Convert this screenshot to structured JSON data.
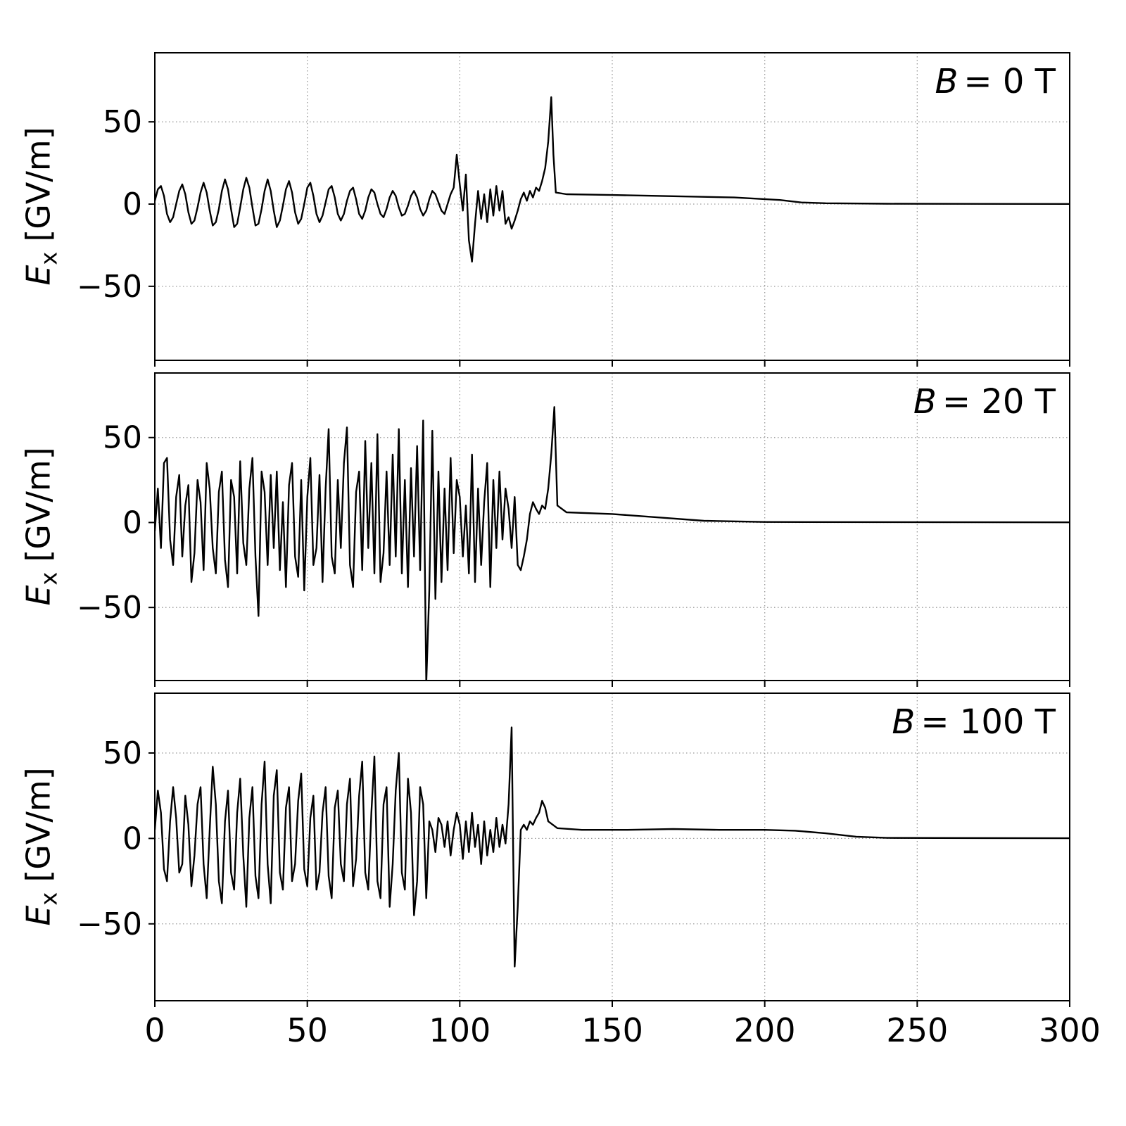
{
  "figure": {
    "background": "#ffffff",
    "line_color": "#000000",
    "grid_color": "#999999",
    "axis_color": "#000000"
  },
  "axes": {
    "xlim": [
      0,
      300
    ],
    "xticks": [
      0,
      50,
      100,
      150,
      200,
      250,
      300
    ],
    "yticks": [
      -50,
      0,
      50
    ],
    "ylabel_symbol": "E",
    "ylabel_subscript": "x",
    "ylabel_unit": "[GV/m]"
  },
  "chart_data": [
    {
      "type": "line",
      "title": "B = 0 T",
      "annotation_symbol": "B",
      "annotation_rest": "= 0 T",
      "xlabel": "",
      "ylabel": "Ex [GV/m]",
      "xlim": [
        0,
        300
      ],
      "ylim": [
        -95,
        92
      ],
      "points": [
        0,
        2,
        1,
        9,
        2,
        11,
        3,
        5,
        4,
        -6,
        5,
        -11,
        6,
        -8,
        7,
        0,
        8,
        8,
        9,
        12,
        10,
        6,
        11,
        -5,
        12,
        -12,
        13,
        -10,
        14,
        -2,
        15,
        7,
        16,
        13,
        17,
        7,
        18,
        -4,
        19,
        -13,
        20,
        -11,
        21,
        -3,
        22,
        8,
        23,
        15,
        24,
        9,
        25,
        -3,
        26,
        -14,
        27,
        -12,
        28,
        -2,
        29,
        9,
        30,
        16,
        31,
        10,
        32,
        -2,
        33,
        -13,
        34,
        -12,
        35,
        -3,
        36,
        8,
        37,
        15,
        38,
        8,
        39,
        -4,
        40,
        -14,
        41,
        -10,
        42,
        -1,
        43,
        9,
        44,
        14,
        45,
        7,
        46,
        -5,
        47,
        -12,
        48,
        -9,
        49,
        0,
        50,
        10,
        51,
        13,
        52,
        5,
        53,
        -6,
        54,
        -11,
        55,
        -7,
        56,
        1,
        57,
        9,
        58,
        11,
        59,
        4,
        60,
        -6,
        61,
        -10,
        62,
        -6,
        63,
        2,
        64,
        8,
        65,
        10,
        66,
        3,
        67,
        -6,
        68,
        -9,
        69,
        -4,
        70,
        4,
        71,
        9,
        72,
        7,
        73,
        0,
        74,
        -6,
        75,
        -8,
        76,
        -3,
        77,
        4,
        78,
        8,
        79,
        5,
        80,
        -2,
        81,
        -7,
        82,
        -6,
        83,
        -1,
        84,
        5,
        85,
        8,
        86,
        4,
        87,
        -3,
        88,
        -7,
        89,
        -4,
        90,
        3,
        91,
        8,
        92,
        6,
        93,
        1,
        94,
        -4,
        95,
        -6,
        96,
        0,
        97,
        6,
        98,
        10,
        99,
        30,
        100,
        12,
        101,
        -4,
        102,
        18,
        103,
        -22,
        104,
        -35,
        105,
        -12,
        106,
        8,
        107,
        -9,
        108,
        6,
        109,
        -11,
        110,
        9,
        111,
        -7,
        112,
        11,
        113,
        -4,
        114,
        8,
        115,
        -12,
        116,
        -8,
        117,
        -15,
        118,
        -10,
        119,
        -4,
        120,
        3,
        121,
        7,
        122,
        2,
        123,
        8,
        124,
        4,
        125,
        10,
        126,
        8,
        127,
        14,
        128,
        22,
        129,
        38,
        130,
        65,
        130.7,
        30,
        131.5,
        7,
        135,
        6,
        150,
        5.5,
        170,
        4.8,
        190,
        4,
        205,
        2.5,
        212,
        1,
        220,
        0.5,
        240,
        0.2,
        300,
        0.1
      ]
    },
    {
      "type": "line",
      "title": "B = 20 T",
      "annotation_symbol": "B",
      "annotation_rest": "= 20 T",
      "xlabel": "",
      "ylabel": "Ex [GV/m]",
      "xlim": [
        0,
        300
      ],
      "ylim": [
        -93,
        88
      ],
      "points": [
        0,
        -5,
        1,
        20,
        2,
        -15,
        3,
        35,
        4,
        38,
        5,
        -10,
        6,
        -25,
        7,
        15,
        8,
        28,
        9,
        -20,
        10,
        10,
        11,
        22,
        12,
        -35,
        13,
        -18,
        14,
        25,
        15,
        12,
        16,
        -28,
        17,
        35,
        18,
        20,
        19,
        -15,
        20,
        -30,
        21,
        18,
        22,
        30,
        23,
        -22,
        24,
        -38,
        25,
        25,
        26,
        15,
        27,
        -30,
        28,
        36,
        29,
        -12,
        30,
        -25,
        31,
        20,
        32,
        38,
        33,
        -20,
        34,
        -55,
        35,
        30,
        36,
        18,
        37,
        -25,
        38,
        28,
        39,
        -15,
        40,
        30,
        41,
        -28,
        42,
        12,
        43,
        -38,
        44,
        22,
        45,
        35,
        46,
        -20,
        47,
        -32,
        48,
        25,
        49,
        -40,
        50,
        15,
        51,
        38,
        52,
        -25,
        53,
        -15,
        54,
        28,
        55,
        -35,
        56,
        20,
        57,
        55,
        58,
        -20,
        59,
        -30,
        60,
        25,
        61,
        -15,
        62,
        35,
        63,
        56,
        64,
        -25,
        65,
        -38,
        66,
        18,
        67,
        30,
        68,
        -28,
        69,
        48,
        70,
        -15,
        71,
        35,
        72,
        -30,
        73,
        52,
        74,
        -35,
        75,
        -18,
        76,
        30,
        77,
        -25,
        78,
        40,
        79,
        -20,
        80,
        55,
        81,
        -30,
        82,
        25,
        83,
        -38,
        84,
        32,
        85,
        -20,
        86,
        45,
        87,
        -28,
        88,
        60,
        89,
        -95,
        90,
        -40,
        91,
        54,
        92,
        -45,
        93,
        30,
        94,
        -35,
        95,
        20,
        96,
        -28,
        97,
        38,
        98,
        -18,
        99,
        25,
        100,
        15,
        101,
        -20,
        102,
        10,
        103,
        -30,
        104,
        40,
        105,
        -35,
        106,
        20,
        107,
        -25,
        108,
        12,
        109,
        35,
        110,
        -38,
        111,
        25,
        112,
        -15,
        113,
        30,
        114,
        -10,
        115,
        20,
        116,
        8,
        117,
        -15,
        118,
        15,
        119,
        -25,
        120,
        -28,
        121,
        -20,
        122,
        -10,
        123,
        5,
        124,
        12,
        125,
        8,
        126,
        5,
        127,
        10,
        128,
        8,
        129,
        20,
        130,
        40,
        131,
        68,
        132,
        10,
        135,
        6,
        150,
        5,
        165,
        3,
        180,
        1,
        200,
        0.3,
        300,
        0.1
      ]
    },
    {
      "type": "line",
      "title": "B = 100 T",
      "annotation_symbol": "B",
      "annotation_rest": "= 100 T",
      "xlabel": "",
      "ylabel": "Ex [GV/m]",
      "xlim": [
        0,
        300
      ],
      "ylim": [
        -95,
        85
      ],
      "points": [
        0,
        5,
        1,
        28,
        2,
        15,
        3,
        -18,
        4,
        -25,
        5,
        10,
        6,
        30,
        7,
        12,
        8,
        -20,
        9,
        -15,
        10,
        25,
        11,
        8,
        12,
        -28,
        13,
        -10,
        14,
        20,
        15,
        30,
        16,
        -15,
        17,
        -35,
        18,
        5,
        19,
        42,
        20,
        20,
        21,
        -25,
        22,
        -38,
        23,
        10,
        24,
        28,
        25,
        -20,
        26,
        -30,
        27,
        15,
        28,
        35,
        29,
        -10,
        30,
        -40,
        31,
        12,
        32,
        30,
        33,
        -22,
        34,
        -35,
        35,
        20,
        36,
        45,
        37,
        -15,
        38,
        -38,
        39,
        25,
        40,
        40,
        41,
        -20,
        42,
        -30,
        43,
        18,
        44,
        30,
        45,
        -25,
        46,
        -15,
        47,
        22,
        48,
        38,
        49,
        -18,
        50,
        -28,
        51,
        12,
        52,
        25,
        53,
        -30,
        54,
        -20,
        55,
        15,
        56,
        30,
        57,
        -22,
        58,
        -35,
        59,
        18,
        60,
        28,
        61,
        -15,
        62,
        -25,
        63,
        20,
        64,
        35,
        65,
        -28,
        66,
        -12,
        67,
        25,
        68,
        45,
        69,
        -20,
        70,
        -30,
        71,
        15,
        72,
        48,
        73,
        -25,
        74,
        -35,
        75,
        20,
        76,
        30,
        77,
        -40,
        78,
        -15,
        79,
        28,
        80,
        50,
        81,
        -20,
        82,
        -30,
        83,
        35,
        84,
        15,
        85,
        -45,
        86,
        -25,
        87,
        30,
        88,
        20,
        89,
        -35,
        90,
        10,
        91,
        5,
        92,
        -8,
        93,
        12,
        94,
        8,
        95,
        -5,
        96,
        10,
        97,
        -10,
        98,
        5,
        99,
        15,
        100,
        8,
        101,
        -12,
        102,
        10,
        103,
        -8,
        104,
        15,
        105,
        -5,
        106,
        8,
        107,
        -15,
        108,
        10,
        109,
        -10,
        110,
        5,
        111,
        -8,
        112,
        12,
        113,
        -5,
        114,
        8,
        115,
        -3,
        116,
        20,
        117,
        65,
        117.6,
        -20,
        118,
        -75,
        119,
        -40,
        120,
        5,
        121,
        8,
        122,
        5,
        123,
        10,
        124,
        8,
        125,
        12,
        126,
        15,
        127,
        22,
        128,
        18,
        129,
        10,
        132,
        6,
        140,
        5,
        155,
        5,
        170,
        5.5,
        185,
        5,
        200,
        5,
        210,
        4.5,
        220,
        3,
        230,
        1,
        240,
        0.3,
        300,
        0.1
      ]
    }
  ]
}
